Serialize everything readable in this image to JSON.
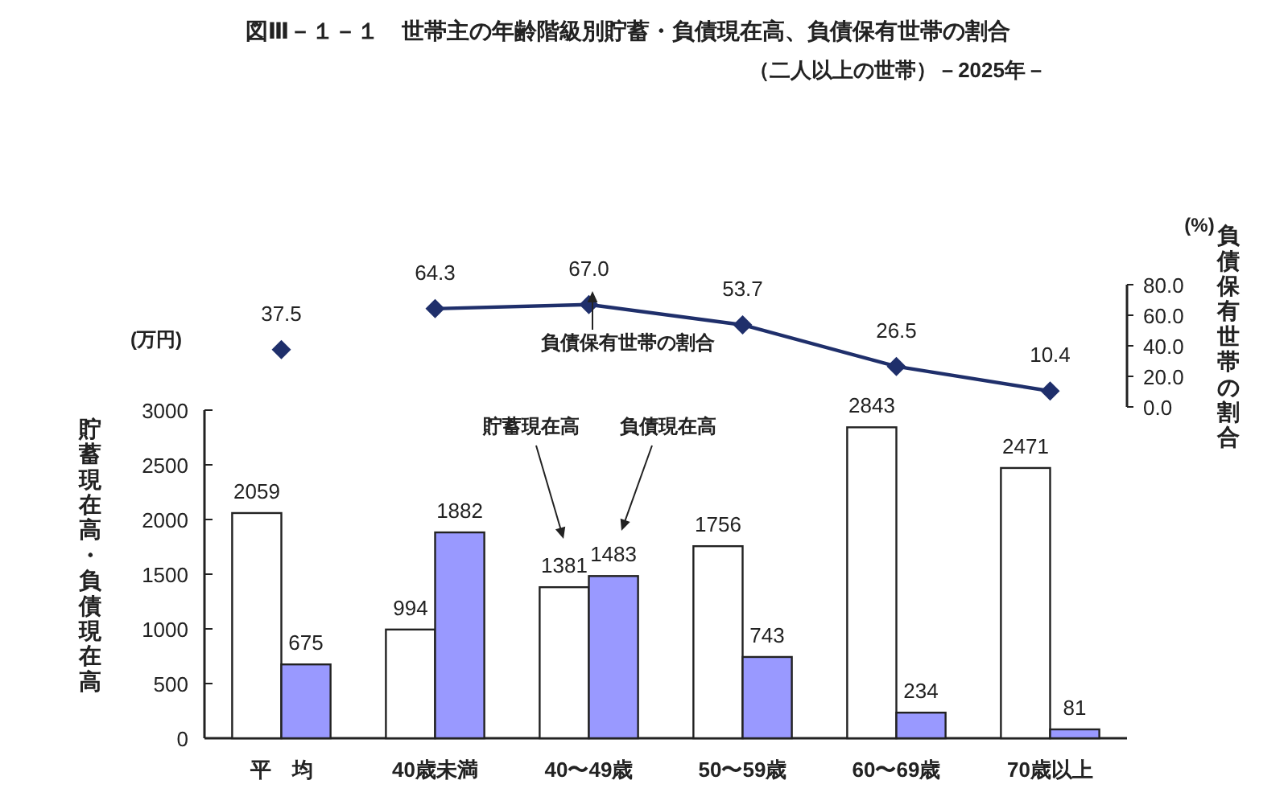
{
  "chart_data": [
    {
      "type": "line",
      "title": "図Ⅲ－１－１　世帯主の年齢階級別貯蓄・負債現在高、負債保有世帯の割合",
      "subtitle": "（二人以上の世帯）－2025年－",
      "categories": [
        null,
        null,
        null,
        null,
        null,
        null
      ],
      "series": [
        {
          "type": "scatter",
          "color": "#1f2f6b",
          "values": [
            37.5,
            null,
            null,
            null,
            null,
            null
          ],
          "value_labels": [
            "37.5",
            null,
            null,
            null,
            null,
            null
          ]
        },
        {
          "color": "#1f2f6b",
          "values": [
            null,
            64.3,
            67.0,
            53.7,
            26.5,
            10.4
          ],
          "value_labels": [
            null,
            "64.3",
            "67.0",
            "53.7",
            "26.5",
            "10.4"
          ]
        }
      ],
      "marker": "diamond",
      "ylim": [
        0,
        80
      ],
      "yticks": [
        {
          "value": 0,
          "label": "0.0"
        },
        {
          "value": 20,
          "label": "20.0"
        },
        {
          "value": 40,
          "label": "40.0"
        },
        {
          "value": 60,
          "label": "60.0"
        },
        {
          "value": 80,
          "label": "80.0"
        }
      ],
      "ylabel": "負債保有世帯の割合",
      "annotations": [
        "(%)",
        "負債保有世帯の割合"
      ]
    },
    {
      "type": "bar",
      "categories": [
        "平　均",
        "40歳未満",
        "40〜49歳",
        "50〜59歳",
        "60〜69歳",
        "70歳以上"
      ],
      "series": [
        {
          "color": "#ffffff",
          "values": [
            2059,
            994,
            1381,
            1756,
            2843,
            2471
          ]
        },
        {
          "color": "#9999ff",
          "values": [
            675,
            1882,
            1483,
            743,
            234,
            81
          ]
        }
      ],
      "ylim": [
        0,
        3000
      ],
      "yticks": [
        0,
        500,
        1000,
        1500,
        2000,
        2500,
        3000
      ],
      "ylabel": "貯蓄現在高・負債現在高",
      "data_labels": true,
      "annotations": [
        "(万円)",
        "貯蓄現在高",
        "負債現在高"
      ]
    }
  ]
}
